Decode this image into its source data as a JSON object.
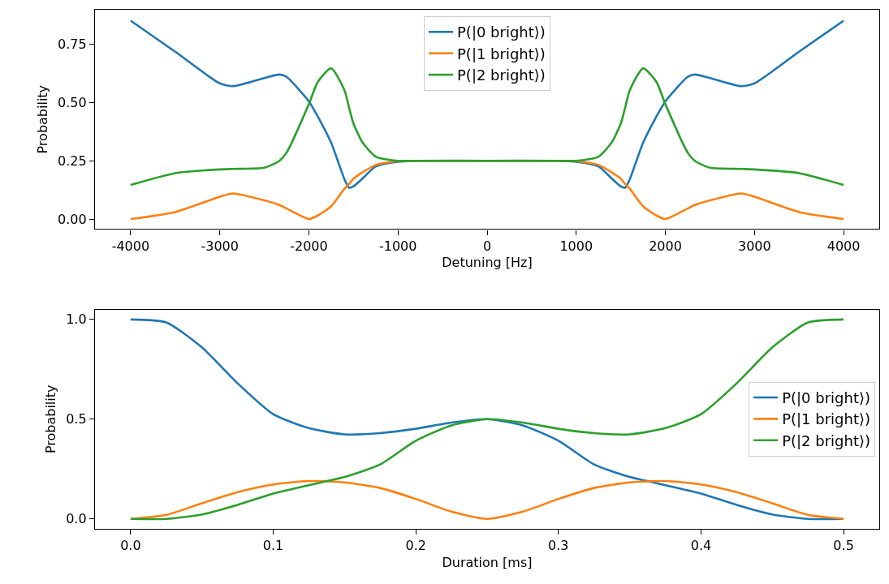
{
  "chart_data": [
    {
      "type": "line",
      "xlabel": "Detuning [Hz]",
      "ylabel": "Probability",
      "x": [
        -4000,
        -3500,
        -3000,
        -2850,
        -2500,
        -2330,
        -2250,
        -2000,
        -1900,
        -1750,
        -1600,
        -1550,
        -1500,
        -1400,
        -1250,
        -1000,
        -750,
        0,
        750,
        1000,
        1250,
        1400,
        1500,
        1550,
        1600,
        1750,
        1900,
        2000,
        2250,
        2330,
        2500,
        2850,
        3000,
        3500,
        4000
      ],
      "series": [
        {
          "name": "P(|0 bright⟩)",
          "color": "#1f77b4",
          "values": [
            0.851,
            0.718,
            0.582,
            0.57,
            0.605,
            0.62,
            0.61,
            0.505,
            0.44,
            0.327,
            0.17,
            0.135,
            0.14,
            0.173,
            0.226,
            0.246,
            0.25,
            0.25,
            0.25,
            0.246,
            0.226,
            0.173,
            0.14,
            0.135,
            0.17,
            0.327,
            0.44,
            0.505,
            0.61,
            0.62,
            0.605,
            0.57,
            0.582,
            0.718,
            0.851
          ]
        },
        {
          "name": "P(|1 bright⟩)",
          "color": "#ff7f0e",
          "values": [
            0.0,
            0.03,
            0.096,
            0.11,
            0.08,
            0.06,
            0.045,
            0.0,
            0.015,
            0.055,
            0.13,
            0.15,
            0.173,
            0.2,
            0.232,
            0.249,
            0.25,
            0.25,
            0.25,
            0.249,
            0.232,
            0.2,
            0.173,
            0.15,
            0.13,
            0.055,
            0.015,
            0.0,
            0.045,
            0.06,
            0.08,
            0.11,
            0.096,
            0.03,
            0.0
          ]
        },
        {
          "name": "P(|2 bright⟩)",
          "color": "#2ca02c",
          "values": [
            0.146,
            0.197,
            0.213,
            0.215,
            0.22,
            0.25,
            0.285,
            0.493,
            0.588,
            0.647,
            0.552,
            0.48,
            0.41,
            0.33,
            0.268,
            0.25,
            0.25,
            0.25,
            0.25,
            0.25,
            0.268,
            0.33,
            0.41,
            0.48,
            0.552,
            0.647,
            0.588,
            0.493,
            0.285,
            0.25,
            0.22,
            0.215,
            0.213,
            0.197,
            0.146
          ]
        }
      ],
      "xlim": [
        -4400,
        4400
      ],
      "xticks": [
        -4000,
        -3000,
        -2000,
        -1000,
        0,
        1000,
        2000,
        3000,
        4000
      ],
      "ylim": [
        -0.043,
        0.898
      ],
      "yticks": [
        {
          "value": 0,
          "label": "0.00"
        },
        {
          "value": 0.25,
          "label": "0.25"
        },
        {
          "value": 0.5,
          "label": "0.50"
        },
        {
          "value": 0.75,
          "label": "0.75"
        }
      ],
      "legend": "top",
      "marker": "none",
      "line_style": "solid"
    },
    {
      "type": "line",
      "xlabel": "Duration [ms]",
      "ylabel": "Probability",
      "x": [
        0,
        0.025,
        0.05,
        0.075,
        0.1,
        0.125,
        0.15,
        0.175,
        0.2,
        0.225,
        0.25,
        0.275,
        0.3,
        0.325,
        0.35,
        0.375,
        0.4,
        0.425,
        0.45,
        0.475,
        0.5
      ],
      "series": [
        {
          "name": "P(|0 bright⟩)",
          "color": "#1f77b4",
          "values": [
            1.0,
            0.985,
            0.86,
            0.68,
            0.525,
            0.455,
            0.424,
            0.43,
            0.452,
            0.483,
            0.5,
            0.469,
            0.392,
            0.273,
            0.21,
            0.169,
            0.127,
            0.07,
            0.022,
            0.0,
            0.0
          ]
        },
        {
          "name": "P(|1 bright⟩)",
          "color": "#ff7f0e",
          "values": [
            0.0,
            0.02,
            0.078,
            0.134,
            0.173,
            0.19,
            0.183,
            0.155,
            0.1,
            0.036,
            0.0,
            0.036,
            0.1,
            0.155,
            0.183,
            0.19,
            0.173,
            0.134,
            0.078,
            0.02,
            0.0
          ]
        },
        {
          "name": "P(|2 bright⟩)",
          "color": "#2ca02c",
          "values": [
            0.0,
            0.0,
            0.022,
            0.07,
            0.127,
            0.169,
            0.21,
            0.273,
            0.392,
            0.469,
            0.5,
            0.483,
            0.452,
            0.43,
            0.424,
            0.455,
            0.525,
            0.68,
            0.86,
            0.985,
            1.0
          ]
        }
      ],
      "xlim": [
        -0.025,
        0.525
      ],
      "xticks": [
        {
          "value": 0,
          "label": "0.0"
        },
        0.1,
        0.2,
        0.3,
        0.4,
        0.5
      ],
      "ylim": [
        -0.05,
        1.05
      ],
      "yticks": [
        {
          "value": 0,
          "label": "0.0"
        },
        0.5,
        {
          "value": 1,
          "label": "1.0"
        }
      ],
      "legend": "right",
      "marker": "none",
      "line_style": "solid"
    }
  ]
}
